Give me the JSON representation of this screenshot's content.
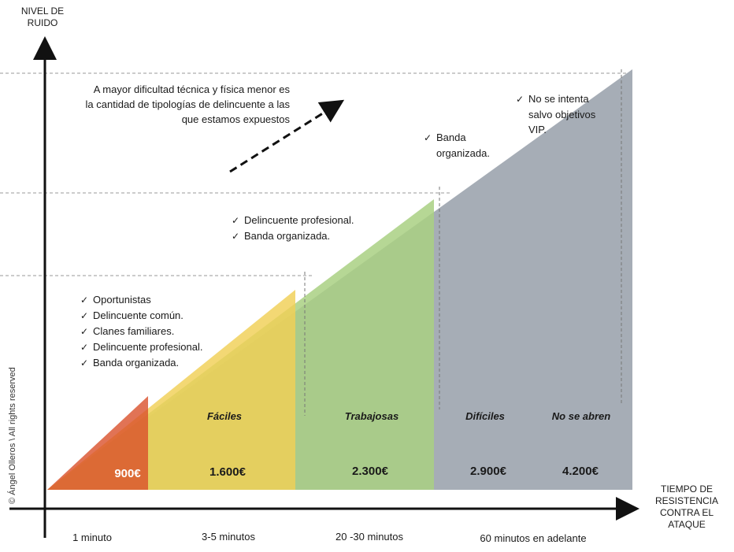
{
  "axes": {
    "y_title_line1": "NIVEL DE",
    "y_title_line2": "RUIDO",
    "x_title_line1": "TIEMPO DE",
    "x_title_line2": "RESISTENCIA",
    "x_title_line3": "CONTRA EL",
    "x_title_line4": "ATAQUE"
  },
  "note": {
    "line1": "A mayor dificultad técnica y física menor es",
    "line2": "la cantidad de tipologías de delincuente  a las",
    "line3": "que estamos expuestos"
  },
  "zones": [
    {
      "id": "z1",
      "price": "900€",
      "color": "#d0601f",
      "time": "1 minuto",
      "category": ""
    },
    {
      "id": "z2",
      "price": "1.600€",
      "color": "#d2c444",
      "time": "3-5 minutos",
      "category": "Fáciles"
    },
    {
      "id": "z3",
      "price": "2.300€",
      "color": "#9cc07f",
      "time": "20 -30 minutos",
      "category": "Trabajosas"
    },
    {
      "id": "z4",
      "price": "2.900€",
      "color": "#a6adb6",
      "time": "60 minutos  en adelante",
      "category": "Difíciles"
    },
    {
      "id": "z5",
      "price": "4.200€",
      "color": "#a6adb6",
      "time": "",
      "category": "No se abren"
    }
  ],
  "lists": {
    "zone1": [
      "Oportunistas",
      "Delincuente común.",
      "Clanes familiares.",
      "Delincuente profesional.",
      "Banda organizada."
    ],
    "zone3": [
      "Delincuente profesional.",
      "Banda organizada."
    ],
    "zone4_line1": "Banda",
    "zone4_line2": "organizada.",
    "zone5_line1": "No se intenta",
    "zone5_line2": "salvo objetivos",
    "zone5_line3": "VIP."
  },
  "check_symbol": "✓",
  "copyright": "© Ángel Olleros \\ All rights reserved"
}
